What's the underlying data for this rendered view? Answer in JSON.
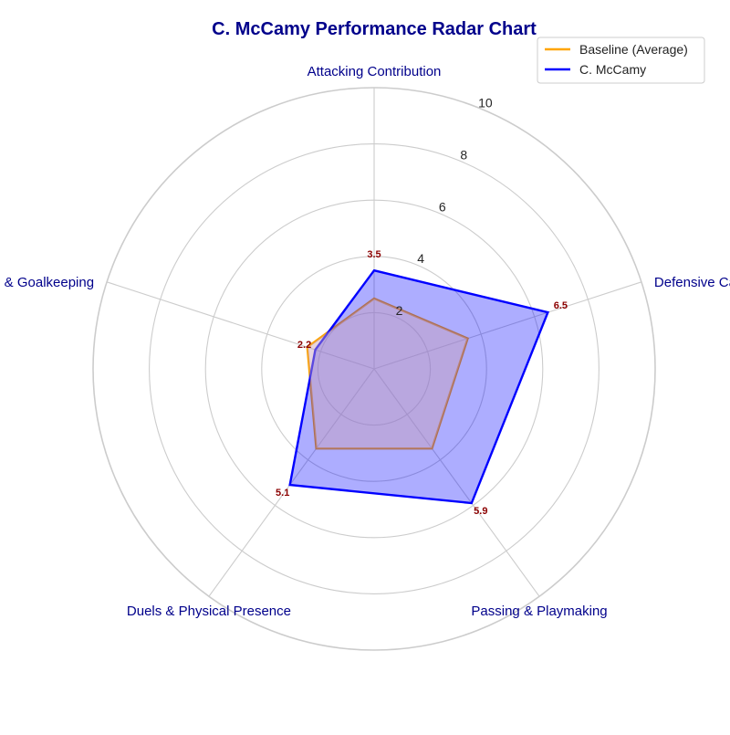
{
  "chart_data": {
    "type": "radar",
    "title": "C. McCamy Performance Radar Chart",
    "categories": [
      "Attacking Contribution",
      "Defensive Capability",
      "Passing & Playmaking",
      "Duels & Physical Presence",
      "Discipline & Goalkeeping"
    ],
    "rlim": [
      0,
      10
    ],
    "r_ticks": [
      2,
      4,
      6,
      8,
      10
    ],
    "r_tick_labels": [
      "2",
      "4",
      "6",
      "8",
      "10"
    ],
    "grid": true,
    "legend_position": "top-right",
    "series": [
      {
        "name": "Baseline (Average)",
        "values": [
          2.5,
          3.5,
          3.5,
          3.5,
          2.5
        ],
        "color": "#ffa500",
        "filled": false
      },
      {
        "name": "C. McCamy",
        "values": [
          3.5,
          6.5,
          5.9,
          5.1,
          2.2
        ],
        "color": "#0000ff",
        "fill_color": "#0000ff",
        "fill_opacity": 0.32,
        "filled": true,
        "data_labels": [
          "3.5",
          "6.5",
          "5.9",
          "5.1",
          "2.2"
        ]
      }
    ],
    "colors": {
      "title": "#00008b",
      "axis_label": "#00008b",
      "data_label": "#8b0000",
      "grid": "#cccccc"
    }
  }
}
